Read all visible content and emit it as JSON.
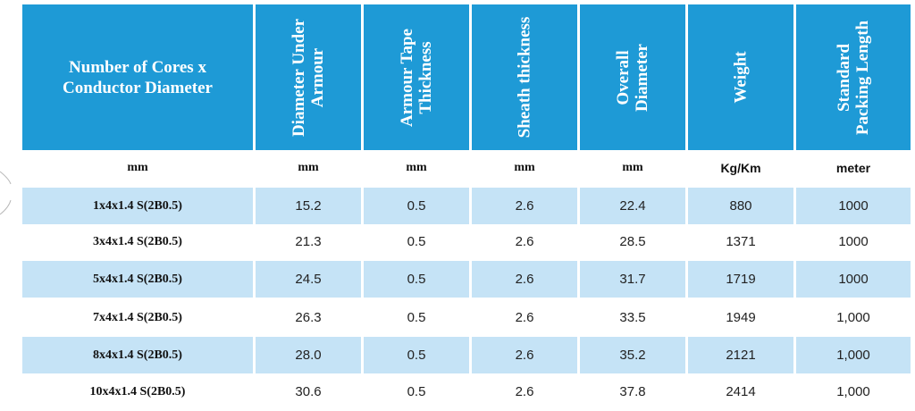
{
  "headers": [
    "Number of Cores x\nConductor Diameter",
    "Diameter Under\nArmour",
    "Armour Tape\nThickness",
    "Sheath thickness",
    "Overall\nDiameter",
    "Weight",
    "Standard\nPacking Length"
  ],
  "units": [
    "mm",
    "mm",
    "mm",
    "mm",
    "mm",
    "Kg/Km",
    "meter"
  ],
  "rows": [
    [
      "1x4x1.4 S(2B0.5)",
      "15.2",
      "0.5",
      "2.6",
      "22.4",
      "880",
      "1000"
    ],
    [
      "3x4x1.4 S(2B0.5)",
      "21.3",
      "0.5",
      "2.6",
      "28.5",
      "1371",
      "1000"
    ],
    [
      "5x4x1.4 S(2B0.5)",
      "24.5",
      "0.5",
      "2.6",
      "31.7",
      "1719",
      "1000"
    ],
    [
      "7x4x1.4 S(2B0.5)",
      "26.3",
      "0.5",
      "2.6",
      "33.5",
      "1949",
      "1,000"
    ],
    [
      "8x4x1.4 S(2B0.5)",
      "28.0",
      "0.5",
      "2.6",
      "35.2",
      "2121",
      "1,000"
    ],
    [
      "10x4x1.4 S(2B0.5)",
      "30.6",
      "0.5",
      "2.6",
      "37.8",
      "2414",
      "1,000"
    ]
  ],
  "colors": {
    "header_bg": "#1e9ad6",
    "header_text": "#ffffff",
    "row_shade": "#c5e3f6",
    "text": "#222222"
  }
}
